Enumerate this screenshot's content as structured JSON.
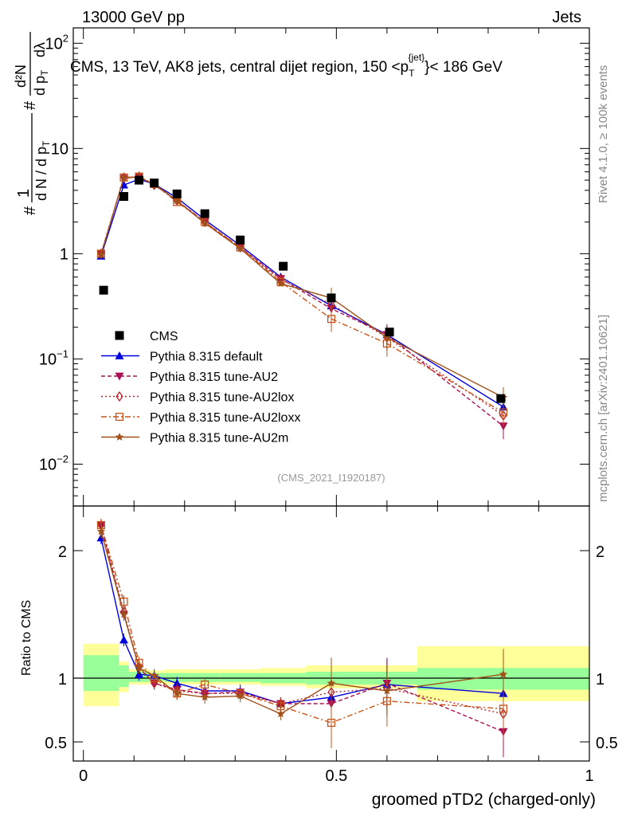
{
  "header": {
    "left": "13000 GeV pp",
    "right": "Jets"
  },
  "title": {
    "prefix": "CMS, 13 TeV, AK8 jets, central dijet region, 150 <p",
    "sub": "T",
    "sup": "{jet}",
    "suffix": "}< 186 GeV"
  },
  "side_labels": {
    "rivet": "Rivet 4.1.0, ≥ 100k events",
    "mcplots": "mcplots.cern.ch [arXiv:2401.10621]"
  },
  "watermark": "(CMS_2021_I1920187)",
  "ylabel_main": {
    "line1": "1",
    "line2": "d N / d p",
    "line2_sub": "T",
    "line3": "d²N",
    "line4": "d p",
    "line4_sub": "T",
    "line5": "dλ",
    "hash": "#"
  },
  "ylabel_ratio": "Ratio to CMS",
  "xlabel": "groomed pTD2 (charged-only)",
  "colors": {
    "data": "#000000",
    "default": "#0000dd",
    "au2": "#aa1155",
    "au2lox": "#b8262f",
    "au2loxx": "#c9541a",
    "au2m": "#a0521a",
    "green": "#99ff99",
    "yellow": "#ffff99"
  },
  "chart_data": {
    "type": "line",
    "x": [
      0.035,
      0.08,
      0.11,
      0.14,
      0.185,
      0.24,
      0.31,
      0.39,
      0.49,
      0.6,
      0.83
    ],
    "main_ylim": [
      0.004,
      140
    ],
    "main_yscale": "log",
    "main_yticks": [
      {
        "v": 0.01,
        "base": "10",
        "exp": "−2"
      },
      {
        "v": 0.1,
        "base": "10",
        "exp": "−1"
      },
      {
        "v": 1,
        "base": "1",
        "exp": ""
      },
      {
        "v": 10,
        "base": "10",
        "exp": ""
      },
      {
        "v": 100,
        "base": "10",
        "exp": "2"
      }
    ],
    "xlim": [
      -0.02,
      1.0
    ],
    "xticks": [
      "0",
      "0.5",
      "1"
    ],
    "xtick_values": [
      0,
      0.5,
      1
    ],
    "ratio_ylim": [
      0.35,
      2.35
    ],
    "ratio_yticks": [
      {
        "v": 0.5,
        "label": "0.5"
      },
      {
        "v": 1,
        "label": "1"
      },
      {
        "v": 2,
        "label": "2"
      }
    ],
    "data": {
      "name": "CMS",
      "x": [
        0.04,
        0.08,
        0.11,
        0.14,
        0.185,
        0.24,
        0.31,
        0.395,
        0.49,
        0.605,
        0.825
      ],
      "values": [
        0.45,
        3.5,
        5.0,
        4.7,
        3.7,
        2.4,
        1.35,
        0.76,
        0.38,
        0.18,
        0.042
      ]
    },
    "bands": {
      "edges": [
        0.0,
        0.07,
        0.09,
        0.13,
        0.16,
        0.21,
        0.27,
        0.35,
        0.44,
        0.54,
        0.66,
        1.0
      ],
      "green": [
        [
          0.9,
          1.18
        ],
        [
          0.93,
          1.1
        ],
        [
          0.97,
          1.05
        ],
        [
          0.98,
          1.04
        ],
        [
          0.97,
          1.04
        ],
        [
          0.97,
          1.04
        ],
        [
          0.97,
          1.04
        ],
        [
          0.96,
          1.04
        ],
        [
          0.95,
          1.05
        ],
        [
          0.95,
          1.05
        ],
        [
          0.91,
          1.08
        ]
      ],
      "yellow": [
        [
          0.78,
          1.27
        ],
        [
          0.89,
          1.13
        ],
        [
          0.95,
          1.07
        ],
        [
          0.96,
          1.06
        ],
        [
          0.95,
          1.07
        ],
        [
          0.95,
          1.07
        ],
        [
          0.95,
          1.07
        ],
        [
          0.94,
          1.08
        ],
        [
          0.92,
          1.1
        ],
        [
          0.92,
          1.1
        ],
        [
          0.82,
          1.25
        ]
      ]
    },
    "series": [
      {
        "name": "Pythia 8.315 default",
        "key": "default",
        "marker": "tri-up",
        "dash": "",
        "values": [
          0.95,
          4.5,
          5.1,
          4.6,
          3.4,
          2.1,
          1.2,
          0.6,
          0.32,
          0.17,
          0.035
        ],
        "ratio": [
          2.1,
          1.3,
          1.03,
          1.02,
          0.96,
          0.9,
          0.9,
          0.8,
          0.85,
          0.95,
          0.88
        ]
      },
      {
        "name": "Pythia 8.315 tune-AU2",
        "key": "au2",
        "marker": "tri-down",
        "dash": "5,3",
        "values": [
          1.0,
          5.2,
          5.4,
          4.5,
          3.2,
          2.0,
          1.15,
          0.58,
          0.3,
          0.17,
          0.023
        ],
        "ratio": [
          2.2,
          1.5,
          1.08,
          0.96,
          0.91,
          0.88,
          0.89,
          0.8,
          0.8,
          0.96,
          0.58
        ]
      },
      {
        "name": "Pythia 8.315 tune-AU2lox",
        "key": "au2lox",
        "marker": "diamond",
        "dash": "2,3",
        "values": [
          1.0,
          5.3,
          5.4,
          4.5,
          3.2,
          2.0,
          1.15,
          0.57,
          0.33,
          0.16,
          0.029
        ],
        "ratio": [
          2.2,
          1.52,
          1.09,
          0.96,
          0.9,
          0.88,
          0.88,
          0.8,
          0.89,
          0.92,
          0.72
        ]
      },
      {
        "name": "Pythia 8.315 tune-AU2loxx",
        "key": "au2loxx",
        "marker": "square",
        "dash": "7,3,2,3",
        "values": [
          1.0,
          5.3,
          5.4,
          4.6,
          3.1,
          2.0,
          1.15,
          0.54,
          0.24,
          0.14,
          0.031
        ],
        "ratio": [
          2.2,
          1.6,
          1.12,
          1.0,
          0.88,
          0.95,
          0.88,
          0.78,
          0.65,
          0.82,
          0.76
        ]
      },
      {
        "name": "Pythia 8.315 tune-AU2m",
        "key": "au2m",
        "marker": "star",
        "dash": "",
        "values": [
          0.98,
          5.3,
          5.3,
          4.6,
          3.2,
          1.95,
          1.12,
          0.52,
          0.38,
          0.16,
          0.043
        ],
        "ratio": [
          2.15,
          1.5,
          1.08,
          1.02,
          0.88,
          0.85,
          0.86,
          0.72,
          0.96,
          0.9,
          1.03
        ]
      }
    ],
    "legend_position": "lower-left"
  }
}
